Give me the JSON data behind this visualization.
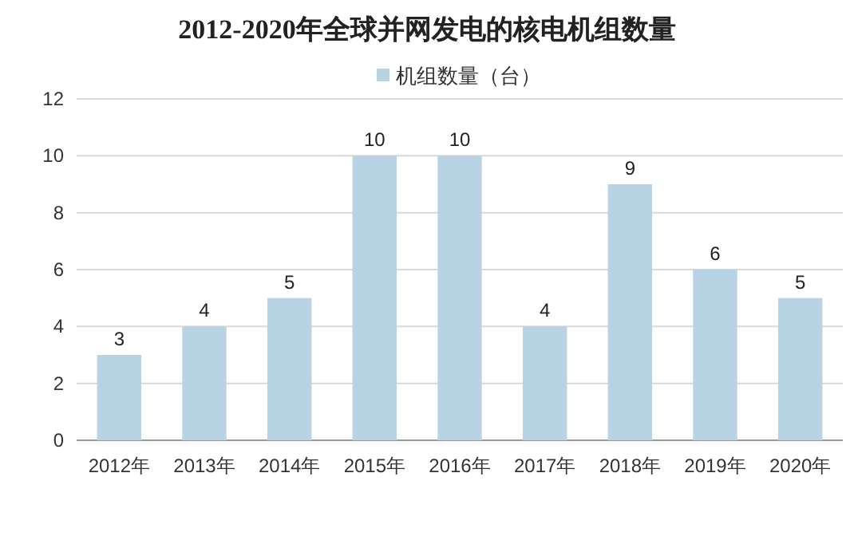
{
  "chart_data": {
    "type": "bar",
    "title": "2012-2020年全球并网发电的核电机组数量",
    "categories": [
      "2012年",
      "2013年",
      "2014年",
      "2015年",
      "2016年",
      "2017年",
      "2018年",
      "2019年",
      "2020年"
    ],
    "series": [
      {
        "name": "机组数量（台）",
        "color": "#b7d3e4",
        "values": [
          3,
          4,
          5,
          10,
          10,
          4,
          9,
          6,
          5
        ]
      }
    ],
    "ylim": [
      0,
      12
    ],
    "yticks": [
      0,
      2,
      4,
      6,
      8,
      10,
      12
    ],
    "grid": "y",
    "legend": "top",
    "data_labels": true
  }
}
